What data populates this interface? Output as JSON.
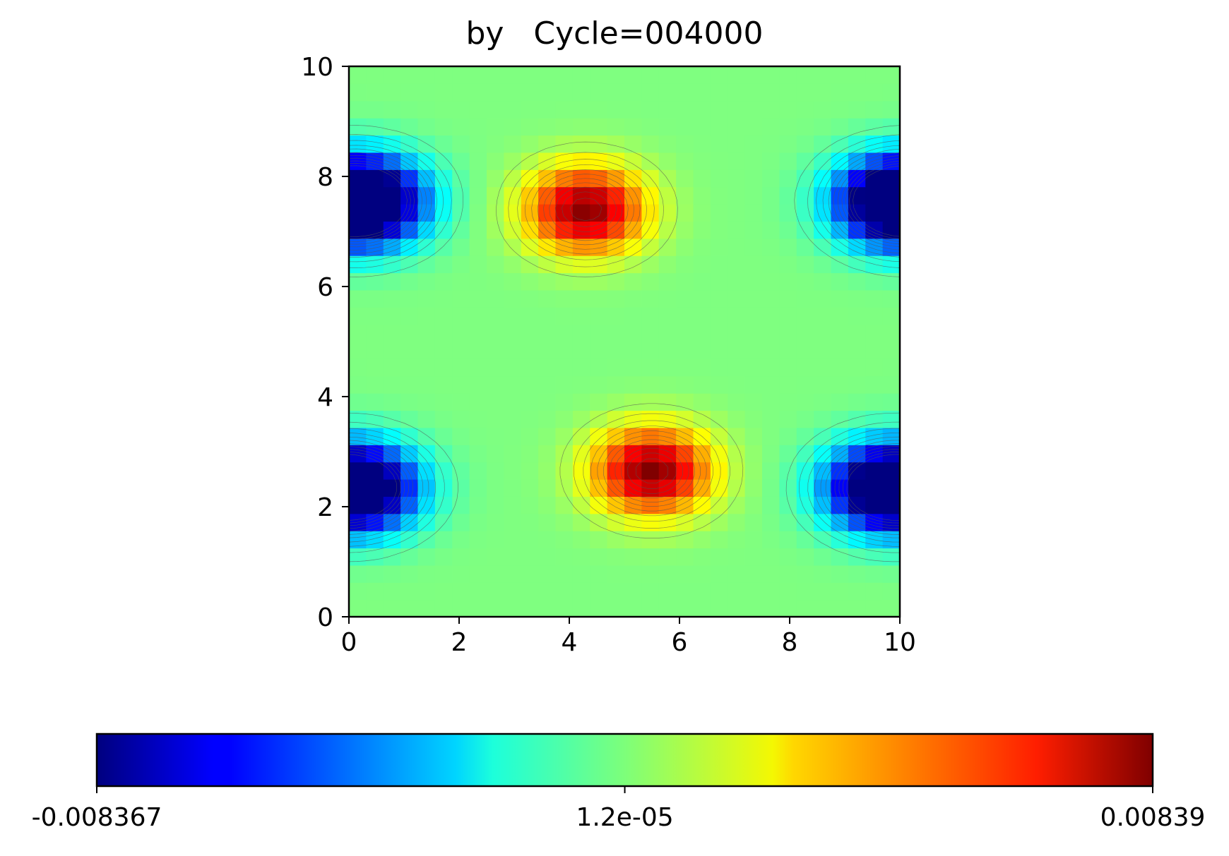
{
  "chart_data": {
    "type": "heatmap",
    "title": "by   Cycle=004000",
    "xlabel": "",
    "ylabel": "",
    "xlim": [
      0,
      10
    ],
    "ylim": [
      0,
      10
    ],
    "xticks": [
      "0",
      "2",
      "4",
      "6",
      "8",
      "10"
    ],
    "yticks": [
      "0",
      "2",
      "4",
      "6",
      "8",
      "10"
    ],
    "colormap": "jet",
    "contours": true,
    "colorbar": {
      "orientation": "horizontal",
      "placement": "bottom",
      "min": -0.008367,
      "max": 0.00839,
      "tick_labels": [
        "-0.008367",
        "1.2e-05",
        "0.00839"
      ],
      "tick_values": [
        -0.008367,
        1.2e-05,
        0.00839
      ]
    },
    "features": [
      {
        "x": 0.4,
        "y": 7.55,
        "value": -0.0083
      },
      {
        "x": 9.8,
        "y": 7.55,
        "value": -0.0082
      },
      {
        "x": 4.3,
        "y": 7.4,
        "value": 0.0083
      },
      {
        "x": 0.3,
        "y": 2.35,
        "value": -0.0078
      },
      {
        "x": 9.6,
        "y": 2.35,
        "value": -0.0077
      },
      {
        "x": 5.5,
        "y": 2.65,
        "value": 0.00839
      }
    ]
  }
}
